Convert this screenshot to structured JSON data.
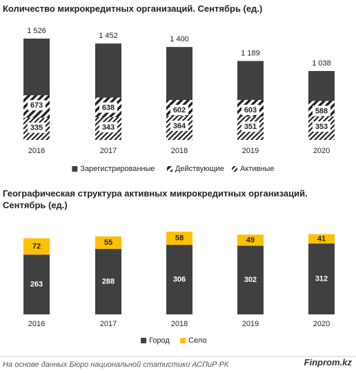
{
  "chart_data": [
    {
      "type": "bar",
      "mode": "overlap",
      "title": "Количество микрокредитных организаций. Сентябрь (ед.)",
      "categories": [
        "2016",
        "2017",
        "2018",
        "2019",
        "2020"
      ],
      "series": [
        {
          "name": "Зарегистрированные",
          "color": "#404040",
          "pattern": "solid",
          "values": [
            1526,
            1452,
            1400,
            1189,
            1038
          ],
          "value_labels": [
            "1 526",
            "1 452",
            "1 400",
            "1 189",
            "1 038"
          ]
        },
        {
          "name": "Действующие",
          "color": "#222222",
          "pattern": "hatch",
          "values": [
            673,
            638,
            602,
            603,
            588
          ]
        },
        {
          "name": "Активные",
          "color": "#222222",
          "pattern": "hatch-dense",
          "values": [
            335,
            343,
            364,
            351,
            353
          ]
        }
      ]
    },
    {
      "type": "bar",
      "mode": "stacked",
      "title": "Географическая структура активных микрокредитных организаций. Сентябрь (ед.)",
      "categories": [
        "2016",
        "2017",
        "2018",
        "2019",
        "2020"
      ],
      "series": [
        {
          "name": "Город",
          "color": "#404040",
          "pattern": "solid",
          "values": [
            263,
            288,
            306,
            302,
            312
          ]
        },
        {
          "name": "Село",
          "color": "#ffc000",
          "pattern": "solid",
          "values": [
            72,
            55,
            58,
            49,
            41
          ]
        }
      ]
    }
  ],
  "footer": {
    "source": "На основе данных Бюро национальной статистики АСПиР РК",
    "brand": "Finprom.kz"
  }
}
